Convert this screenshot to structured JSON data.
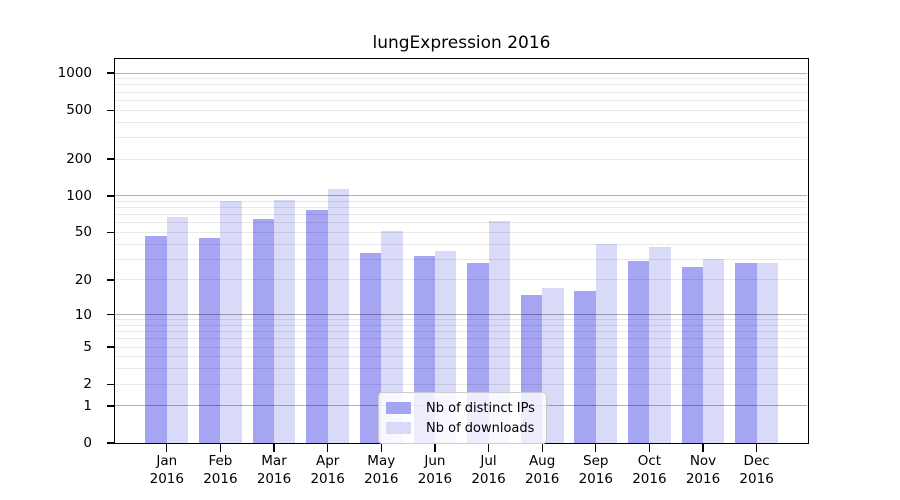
{
  "chart_data": {
    "type": "bar",
    "title": "lungExpression 2016",
    "months": [
      "Jan",
      "Feb",
      "Mar",
      "Apr",
      "May",
      "Jun",
      "Jul",
      "Aug",
      "Sep",
      "Oct",
      "Nov",
      "Dec"
    ],
    "year": "2016",
    "series": [
      {
        "name": "Nb of distinct IPs",
        "color": "#a5a5f3",
        "values": [
          47,
          45,
          65,
          76,
          34,
          32,
          28,
          15,
          16,
          29,
          26,
          28
        ]
      },
      {
        "name": "Nb of downloads",
        "color": "#d9d9f8",
        "values": [
          67,
          90,
          92,
          114,
          51,
          35,
          62,
          17,
          40,
          38,
          30,
          28
        ]
      }
    ],
    "y_scale": "log1p",
    "y_ticks": [
      0,
      1,
      2,
      5,
      10,
      20,
      50,
      100,
      200,
      500,
      1000
    ],
    "ylim_top": 1360,
    "grid_major": [
      1,
      10,
      100,
      1000
    ],
    "grid_minor": [
      2,
      3,
      4,
      5,
      6,
      7,
      8,
      9,
      20,
      30,
      40,
      50,
      60,
      70,
      80,
      90,
      200,
      300,
      400,
      500,
      600,
      700,
      800,
      900
    ],
    "legend": {
      "position": "lower-center"
    }
  }
}
